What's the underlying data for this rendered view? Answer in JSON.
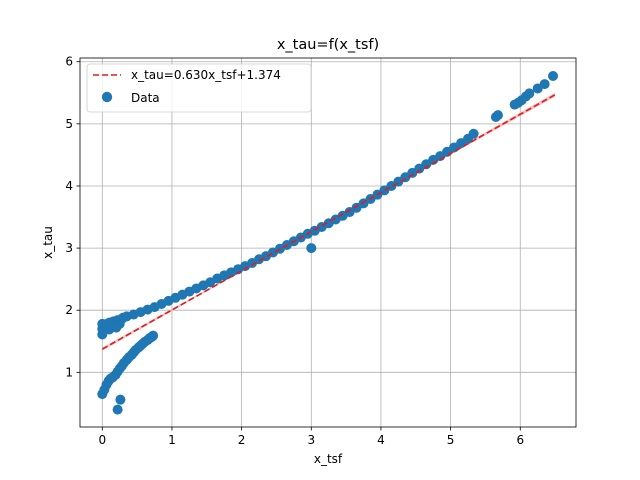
{
  "chart_data": {
    "type": "scatter",
    "title": "x_tau=f(x_tsf)",
    "xlabel": "x_tsf",
    "ylabel": "x_tau",
    "xlim": [
      -0.32,
      6.8
    ],
    "ylim": [
      0.12,
      6.06
    ],
    "xticks": [
      0,
      1,
      2,
      3,
      4,
      5,
      6
    ],
    "yticks": [
      1,
      2,
      3,
      4,
      5,
      6
    ],
    "grid": true,
    "legend_position": "top-left",
    "colors": {
      "data": "#1f77b4",
      "fit": "#e41a1c",
      "band": "#f4a4a4"
    },
    "series": [
      {
        "name": "x_tau=0.630x_tsf+1.374",
        "kind": "line",
        "style": "dashed",
        "slope": 0.63,
        "intercept": 1.374,
        "x": [
          0.0,
          6.5
        ],
        "y": [
          1.374,
          5.469
        ]
      },
      {
        "name": "Data",
        "kind": "scatter",
        "points": [
          [
            0.0,
            0.65
          ],
          [
            0.03,
            0.72
          ],
          [
            0.06,
            0.8
          ],
          [
            0.09,
            0.86
          ],
          [
            0.12,
            0.9
          ],
          [
            0.15,
            0.92
          ],
          [
            0.19,
            0.96
          ],
          [
            0.22,
            1.01
          ],
          [
            0.25,
            1.06
          ],
          [
            0.28,
            1.1
          ],
          [
            0.31,
            1.15
          ],
          [
            0.35,
            1.2
          ],
          [
            0.38,
            1.24
          ],
          [
            0.42,
            1.28
          ],
          [
            0.45,
            1.32
          ],
          [
            0.48,
            1.36
          ],
          [
            0.52,
            1.4
          ],
          [
            0.55,
            1.43
          ],
          [
            0.58,
            1.46
          ],
          [
            0.61,
            1.49
          ],
          [
            0.65,
            1.52
          ],
          [
            0.68,
            1.55
          ],
          [
            0.71,
            1.57
          ],
          [
            0.73,
            1.59
          ],
          [
            0.22,
            0.4
          ],
          [
            0.26,
            0.56
          ],
          [
            0.0,
            1.61
          ],
          [
            0.0,
            1.7
          ],
          [
            0.0,
            1.78
          ],
          [
            0.04,
            1.75
          ],
          [
            0.07,
            1.78
          ],
          [
            0.1,
            1.8
          ],
          [
            0.13,
            1.74
          ],
          [
            0.16,
            1.82
          ],
          [
            0.19,
            1.76
          ],
          [
            0.22,
            1.84
          ],
          [
            0.25,
            1.78
          ],
          [
            0.28,
            1.86
          ],
          [
            0.1,
            1.69
          ],
          [
            0.2,
            1.72
          ],
          [
            0.3,
            1.88
          ],
          [
            0.35,
            1.9
          ],
          [
            0.45,
            1.93
          ],
          [
            0.55,
            1.97
          ],
          [
            0.65,
            2.01
          ],
          [
            0.75,
            2.05
          ],
          [
            0.85,
            2.1
          ],
          [
            0.95,
            2.15
          ],
          [
            1.05,
            2.2
          ],
          [
            1.15,
            2.25
          ],
          [
            1.25,
            2.3
          ],
          [
            1.35,
            2.35
          ],
          [
            1.45,
            2.4
          ],
          [
            1.55,
            2.45
          ],
          [
            1.65,
            2.51
          ],
          [
            1.75,
            2.56
          ],
          [
            1.85,
            2.61
          ],
          [
            1.95,
            2.66
          ],
          [
            2.05,
            2.71
          ],
          [
            2.15,
            2.76
          ],
          [
            2.25,
            2.82
          ],
          [
            2.35,
            2.87
          ],
          [
            2.45,
            2.93
          ],
          [
            2.55,
            2.99
          ],
          [
            2.65,
            3.05
          ],
          [
            2.75,
            3.11
          ],
          [
            2.85,
            3.17
          ],
          [
            2.95,
            3.23
          ],
          [
            3.05,
            3.28
          ],
          [
            3.15,
            3.34
          ],
          [
            3.25,
            3.4
          ],
          [
            3.35,
            3.46
          ],
          [
            3.45,
            3.52
          ],
          [
            3.55,
            3.58
          ],
          [
            3.65,
            3.65
          ],
          [
            3.75,
            3.72
          ],
          [
            3.85,
            3.79
          ],
          [
            3.95,
            3.86
          ],
          [
            4.05,
            3.93
          ],
          [
            4.15,
            4.0
          ],
          [
            4.25,
            4.07
          ],
          [
            4.35,
            4.14
          ],
          [
            4.45,
            4.21
          ],
          [
            4.55,
            4.28
          ],
          [
            4.65,
            4.35
          ],
          [
            4.75,
            4.42
          ],
          [
            4.85,
            4.48
          ],
          [
            4.95,
            4.55
          ],
          [
            5.05,
            4.62
          ],
          [
            5.15,
            4.69
          ],
          [
            5.25,
            4.76
          ],
          [
            5.33,
            4.84
          ],
          [
            3.0,
            3.0
          ],
          [
            5.65,
            5.11
          ],
          [
            5.68,
            5.14
          ],
          [
            5.92,
            5.31
          ],
          [
            5.97,
            5.34
          ],
          [
            6.02,
            5.38
          ],
          [
            6.08,
            5.44
          ],
          [
            6.13,
            5.49
          ],
          [
            6.25,
            5.57
          ],
          [
            6.35,
            5.64
          ],
          [
            6.47,
            5.77
          ]
        ]
      }
    ]
  }
}
